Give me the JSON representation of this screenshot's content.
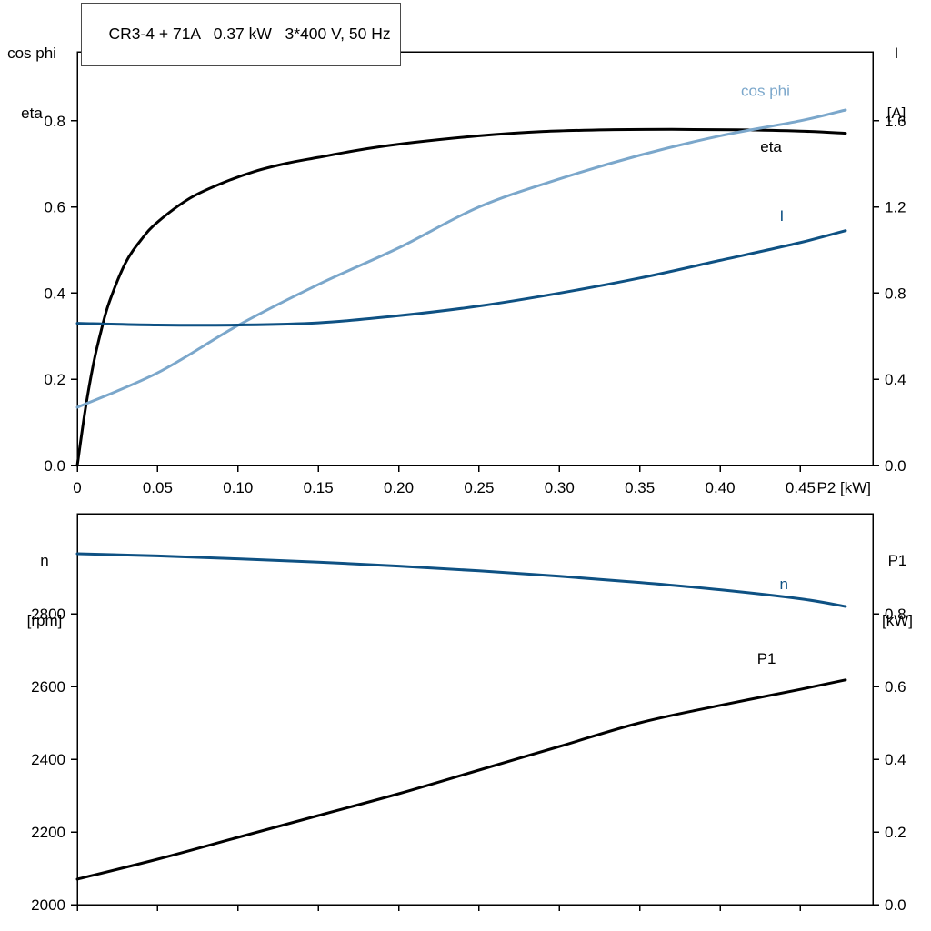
{
  "title_box": {
    "text": "CR3-4 + 71A   0.37 kW   3*400 V, 50 Hz"
  },
  "corner_labels": {
    "top_left_line1": "cos phi",
    "top_left_line2": "eta",
    "top_right_line1": "I",
    "top_right_line2": "[A]",
    "bottom_left_line1": "n",
    "bottom_left_line2": "[rpm]",
    "bottom_right_line1": "P1",
    "bottom_right_line2": "[kW]"
  },
  "colors": {
    "curve_black": "#000000",
    "curve_light_blue": "#7ba7cb",
    "curve_dark_blue": "#0e5183",
    "axis": "#000000",
    "text": "#000000"
  },
  "chart_data": [
    {
      "id": "motor-efficiency-chart",
      "type": "line",
      "title": "CR3-4 + 71A   0.37 kW   3*400 V, 50 Hz",
      "xlabel": "P2 [kW]",
      "xlim": [
        0,
        0.495
      ],
      "x_ticks": [
        0,
        0.05,
        0.1,
        0.15,
        0.2,
        0.25,
        0.3,
        0.35,
        0.4,
        0.45
      ],
      "x_tick_labels": [
        "0",
        "0.05",
        "0.10",
        "0.15",
        "0.20",
        "0.25",
        "0.30",
        "0.35",
        "0.40",
        "0.45"
      ],
      "show_x_tick_labels": true,
      "left_axis": {
        "title": "cos phi / eta",
        "lim": [
          0,
          0.96
        ],
        "ticks": [
          0,
          0.2,
          0.4,
          0.6,
          0.8
        ],
        "tick_labels": [
          "0.0",
          "0.2",
          "0.4",
          "0.6",
          "0.8"
        ]
      },
      "right_axis": {
        "title": "I [A]",
        "lim": [
          0,
          1.92
        ],
        "ticks": [
          0,
          0.4,
          0.8,
          1.2,
          1.6
        ],
        "tick_labels": [
          "0.0",
          "0.4",
          "0.8",
          "1.2",
          "1.6"
        ]
      },
      "series": [
        {
          "name": "eta",
          "axis": "left",
          "color": "curve_black",
          "x": [
            0,
            0.005,
            0.01,
            0.015,
            0.02,
            0.03,
            0.04,
            0.05,
            0.07,
            0.09,
            0.11,
            0.13,
            0.15,
            0.18,
            0.21,
            0.25,
            0.29,
            0.33,
            0.37,
            0.41,
            0.45,
            0.478
          ],
          "values": [
            0,
            0.13,
            0.235,
            0.315,
            0.38,
            0.47,
            0.525,
            0.565,
            0.62,
            0.655,
            0.682,
            0.701,
            0.715,
            0.735,
            0.75,
            0.765,
            0.775,
            0.779,
            0.78,
            0.779,
            0.776,
            0.771
          ],
          "label": {
            "text": "eta",
            "x": 0.425,
            "y": 0.728
          }
        },
        {
          "name": "cos phi",
          "axis": "left",
          "color": "curve_light_blue",
          "x": [
            0,
            0.05,
            0.1,
            0.15,
            0.2,
            0.25,
            0.3,
            0.35,
            0.4,
            0.45,
            0.478
          ],
          "values": [
            0.135,
            0.215,
            0.325,
            0.42,
            0.505,
            0.6,
            0.665,
            0.72,
            0.765,
            0.8,
            0.825
          ],
          "label": {
            "text": "cos phi",
            "x": 0.413,
            "y": 0.858
          }
        },
        {
          "name": "I",
          "axis": "right",
          "color": "curve_dark_blue",
          "x": [
            0,
            0.05,
            0.1,
            0.15,
            0.2,
            0.25,
            0.3,
            0.35,
            0.4,
            0.45,
            0.478
          ],
          "values": [
            0.66,
            0.652,
            0.652,
            0.662,
            0.695,
            0.74,
            0.8,
            0.87,
            0.952,
            1.035,
            1.09
          ],
          "label": {
            "text": "I",
            "x": 0.437,
            "y": 1.135
          }
        }
      ]
    },
    {
      "id": "motor-speed-power-chart",
      "type": "line",
      "title": "",
      "xlabel": "",
      "xlim": [
        0,
        0.495
      ],
      "x_ticks": [
        0,
        0.05,
        0.1,
        0.15,
        0.2,
        0.25,
        0.3,
        0.35,
        0.4,
        0.45
      ],
      "x_tick_labels": [],
      "show_x_tick_labels": false,
      "left_axis": {
        "title": "n [rpm]",
        "lim": [
          2000,
          3075
        ],
        "ticks": [
          2000,
          2200,
          2400,
          2600,
          2800
        ],
        "tick_labels": [
          "2000",
          "2200",
          "2400",
          "2600",
          "2800"
        ]
      },
      "right_axis": {
        "title": "P1 [kW]",
        "lim": [
          0,
          1.075
        ],
        "ticks": [
          0,
          0.2,
          0.4,
          0.6,
          0.8
        ],
        "tick_labels": [
          "0.0",
          "0.2",
          "0.4",
          "0.6",
          "0.8"
        ]
      },
      "series": [
        {
          "name": "n",
          "axis": "left",
          "color": "curve_dark_blue",
          "x": [
            0,
            0.05,
            0.1,
            0.15,
            0.2,
            0.25,
            0.3,
            0.35,
            0.4,
            0.45,
            0.478
          ],
          "values": [
            2965,
            2959,
            2951,
            2942,
            2931,
            2918,
            2903,
            2886,
            2866,
            2841,
            2820
          ],
          "label": {
            "text": "n",
            "x": 0.437,
            "y": 2868
          }
        },
        {
          "name": "P1",
          "axis": "right",
          "color": "curve_black",
          "x": [
            0,
            0.05,
            0.1,
            0.15,
            0.2,
            0.25,
            0.3,
            0.35,
            0.4,
            0.45,
            0.478
          ],
          "values": [
            0.07,
            0.125,
            0.185,
            0.245,
            0.305,
            0.37,
            0.435,
            0.5,
            0.548,
            0.592,
            0.618
          ],
          "label": {
            "text": "P1",
            "x": 0.423,
            "y": 0.662
          }
        }
      ]
    }
  ]
}
